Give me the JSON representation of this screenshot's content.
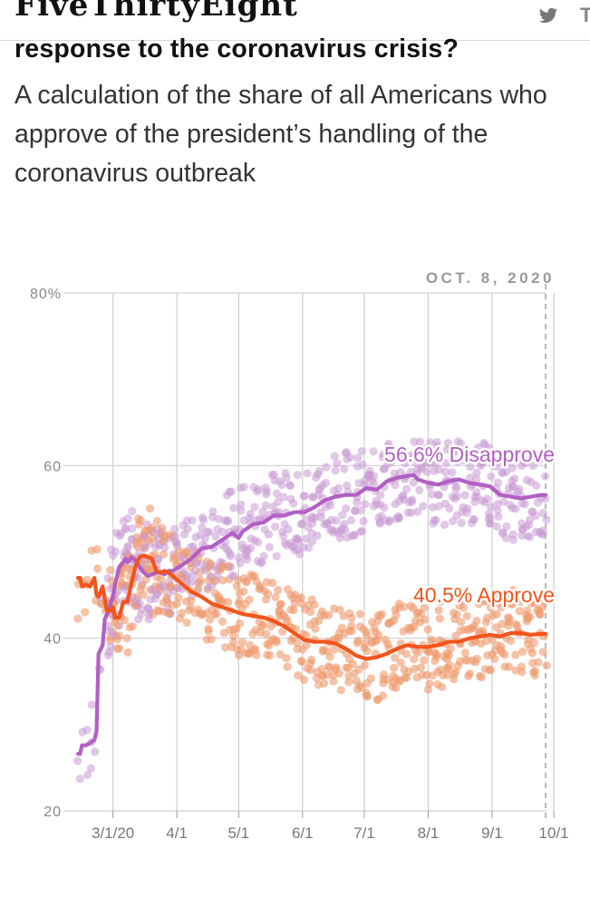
{
  "header": {
    "brand": "FiveThirtyEight",
    "twitter_icon": "twitter-bird-icon",
    "more_label": "T"
  },
  "article": {
    "headline": "response to the coronavirus crisis?",
    "subhead": "A calculation of the share of all Americans who approve of the president’s handling of the coronavirus outbreak"
  },
  "chart_data": {
    "type": "line",
    "date_label": "OCT. 8, 2020",
    "y_ticks": [
      "80%",
      "60",
      "40",
      "20"
    ],
    "y_tick_values": [
      80,
      60,
      40,
      20
    ],
    "ylim": [
      20,
      80
    ],
    "xlim": [
      0,
      227
    ],
    "x_ticks": [
      "3/1/20",
      "4/1",
      "5/1",
      "6/1",
      "7/1",
      "8/1",
      "9/1",
      "10/1"
    ],
    "x_tick_days": [
      17,
      48,
      78,
      109,
      139,
      170,
      201,
      231
    ],
    "colors": {
      "approve": "#f2541b",
      "disapprove": "#b25fc4",
      "approve_dots": "#ee9a6e",
      "disapprove_dots": "#c99ad4"
    },
    "series": [
      {
        "name": "Disapprove",
        "label": "56.6% Disapprove",
        "final_value": 56.6,
        "x": [
          0,
          1,
          2,
          3,
          4,
          8,
          9,
          10,
          12,
          13,
          15,
          16,
          17,
          18,
          20,
          22,
          23,
          24,
          26,
          28,
          30,
          32,
          34,
          36,
          38,
          40,
          42,
          44,
          46,
          50,
          55,
          60,
          65,
          70,
          75,
          78,
          80,
          85,
          90,
          95,
          100,
          105,
          110,
          115,
          120,
          125,
          130,
          135,
          140,
          145,
          150,
          155,
          160,
          163,
          165,
          170,
          175,
          180,
          185,
          190,
          195,
          200,
          205,
          210,
          215,
          220,
          225,
          227
        ],
        "values": [
          26.6,
          26.6,
          27.6,
          27.6,
          27.6,
          28.2,
          29.2,
          38.2,
          39.2,
          42.2,
          43.2,
          44.2,
          44.8,
          46.2,
          48.2,
          48.8,
          49.2,
          48.8,
          49.4,
          49.0,
          48.2,
          47.6,
          47.2,
          47.4,
          47.6,
          47.6,
          47.4,
          47.8,
          47.8,
          48.4,
          49.2,
          50.4,
          50.6,
          51.4,
          52.2,
          51.6,
          52.4,
          53.2,
          53.4,
          54.2,
          54.2,
          54.6,
          54.6,
          55.2,
          56.0,
          56.4,
          56.6,
          56.6,
          57.4,
          57.2,
          58.2,
          58.6,
          58.8,
          58.9,
          58.4,
          58.0,
          57.8,
          58.2,
          58.4,
          58.0,
          57.8,
          57.6,
          56.6,
          56.4,
          56.2,
          56.4,
          56.6,
          56.6
        ]
      },
      {
        "name": "Approve",
        "label": "40.5% Approve",
        "final_value": 40.5,
        "x": [
          0,
          1,
          2,
          4,
          6,
          8,
          9,
          10,
          12,
          14,
          16,
          17,
          18,
          19,
          20,
          22,
          24,
          26,
          28,
          30,
          32,
          34,
          36,
          38,
          40,
          42,
          44,
          46,
          48,
          50,
          55,
          60,
          65,
          70,
          75,
          80,
          85,
          90,
          95,
          100,
          105,
          110,
          115,
          120,
          125,
          130,
          135,
          140,
          145,
          150,
          155,
          160,
          165,
          170,
          175,
          180,
          185,
          190,
          195,
          200,
          205,
          210,
          215,
          220,
          225,
          227
        ],
        "values": [
          47.0,
          47.0,
          46.0,
          46.2,
          46.0,
          47.0,
          45.0,
          44.8,
          46.0,
          43.2,
          43.2,
          43.6,
          42.4,
          42.4,
          42.4,
          44.2,
          44.2,
          46.4,
          48.4,
          49.4,
          49.6,
          49.4,
          49.2,
          47.8,
          47.6,
          47.8,
          47.6,
          47.2,
          46.8,
          46.4,
          45.4,
          44.8,
          44.0,
          43.6,
          43.2,
          42.8,
          42.6,
          42.4,
          42.0,
          41.4,
          40.6,
          39.8,
          39.6,
          39.6,
          39.4,
          38.8,
          38.0,
          37.6,
          37.8,
          38.2,
          38.8,
          39.2,
          39.0,
          39.0,
          39.2,
          39.6,
          39.6,
          40.0,
          40.2,
          40.4,
          40.2,
          40.6,
          40.6,
          40.4,
          40.5,
          40.5
        ]
      }
    ]
  }
}
